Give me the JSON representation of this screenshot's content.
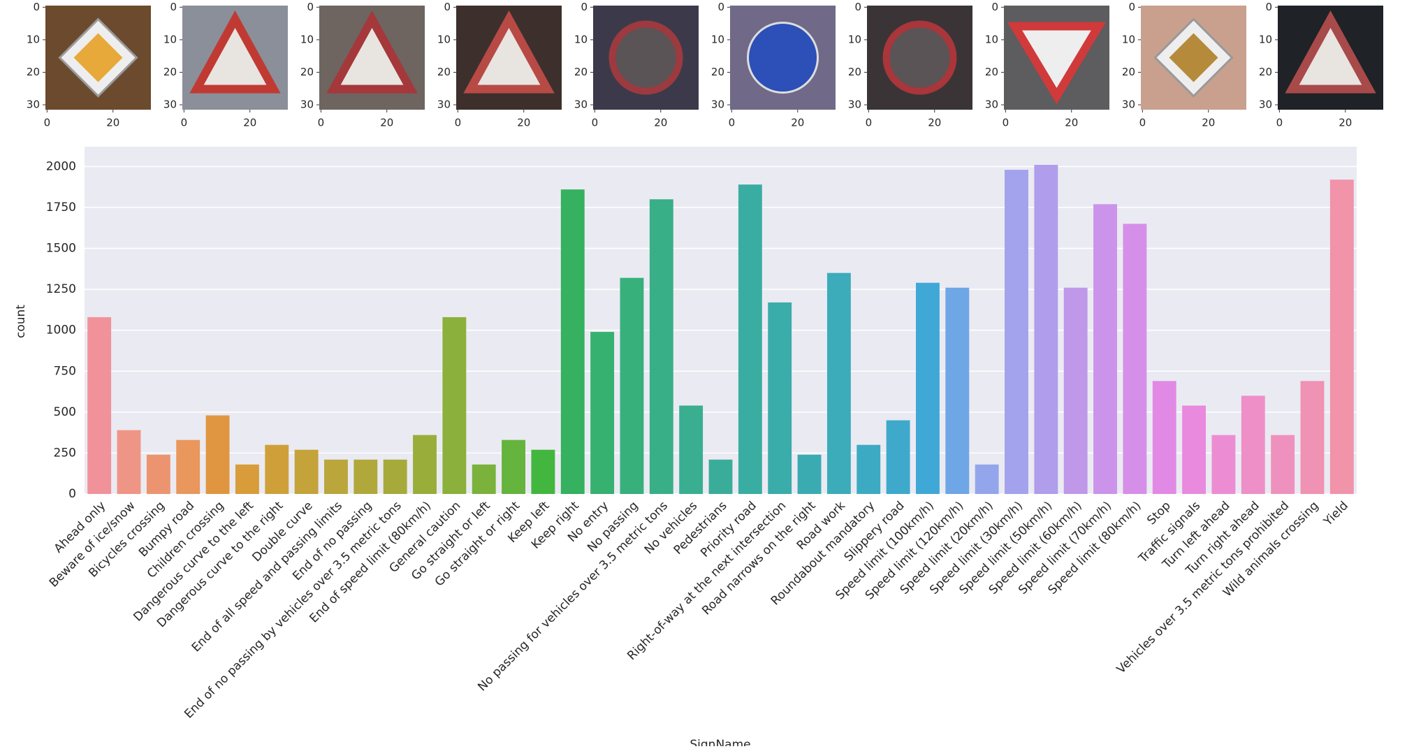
{
  "chart_data": [
    {
      "type": "image",
      "xlim": [
        -0.5,
        31.5
      ],
      "ylim": [
        31.5,
        -0.5
      ],
      "xticks": [
        0,
        20
      ],
      "yticks": [
        0,
        10,
        20,
        30
      ]
    },
    {
      "type": "image",
      "xlim": [
        -0.5,
        31.5
      ],
      "ylim": [
        31.5,
        -0.5
      ],
      "xticks": [
        0,
        20
      ],
      "yticks": [
        0,
        10,
        20,
        30
      ]
    },
    {
      "type": "image",
      "xlim": [
        -0.5,
        31.5
      ],
      "ylim": [
        31.5,
        -0.5
      ],
      "xticks": [
        0,
        20
      ],
      "yticks": [
        0,
        10,
        20,
        30
      ]
    },
    {
      "type": "image",
      "xlim": [
        -0.5,
        31.5
      ],
      "ylim": [
        31.5,
        -0.5
      ],
      "xticks": [
        0,
        20
      ],
      "yticks": [
        0,
        10,
        20,
        30
      ]
    },
    {
      "type": "image",
      "xlim": [
        -0.5,
        31.5
      ],
      "ylim": [
        31.5,
        -0.5
      ],
      "xticks": [
        0,
        20
      ],
      "yticks": [
        0,
        10,
        20,
        30
      ]
    },
    {
      "type": "image",
      "xlim": [
        -0.5,
        31.5
      ],
      "ylim": [
        31.5,
        -0.5
      ],
      "xticks": [
        0,
        20
      ],
      "yticks": [
        0,
        10,
        20,
        30
      ]
    },
    {
      "type": "image",
      "xlim": [
        -0.5,
        31.5
      ],
      "ylim": [
        31.5,
        -0.5
      ],
      "xticks": [
        0,
        20
      ],
      "yticks": [
        0,
        10,
        20,
        30
      ]
    },
    {
      "type": "image",
      "xlim": [
        -0.5,
        31.5
      ],
      "ylim": [
        31.5,
        -0.5
      ],
      "xticks": [
        0,
        20
      ],
      "yticks": [
        0,
        10,
        20,
        30
      ]
    },
    {
      "type": "image",
      "xlim": [
        -0.5,
        31.5
      ],
      "ylim": [
        31.5,
        -0.5
      ],
      "xticks": [
        0,
        20
      ],
      "yticks": [
        0,
        10,
        20,
        30
      ]
    },
    {
      "type": "image",
      "xlim": [
        -0.5,
        31.5
      ],
      "ylim": [
        31.5,
        -0.5
      ],
      "xticks": [
        0,
        20
      ],
      "yticks": [
        0,
        10,
        20,
        30
      ]
    },
    {
      "type": "bar",
      "xlabel": "SignName",
      "ylabel": "count",
      "categories": [
        "Ahead only",
        "Beware of ice/snow",
        "Bicycles crossing",
        "Bumpy road",
        "Children crossing",
        "Dangerous curve to the left",
        "Dangerous curve to the right",
        "Double curve",
        "End of all speed and passing limits",
        "End of no passing",
        "End of no passing by vehicles over 3.5 metric tons",
        "End of speed limit (80km/h)",
        "General caution",
        "Go straight or left",
        "Go straight or right",
        "Keep left",
        "Keep right",
        "No entry",
        "No passing",
        "No passing for vehicles over 3.5 metric tons",
        "No vehicles",
        "Pedestrians",
        "Priority road",
        "Right-of-way at the next intersection",
        "Road narrows on the right",
        "Road work",
        "Roundabout mandatory",
        "Slippery road",
        "Speed limit (100km/h)",
        "Speed limit (120km/h)",
        "Speed limit (20km/h)",
        "Speed limit (30km/h)",
        "Speed limit (50km/h)",
        "Speed limit (60km/h)",
        "Speed limit (70km/h)",
        "Speed limit (80km/h)",
        "Stop",
        "Traffic signals",
        "Turn left ahead",
        "Turn right ahead",
        "Vehicles over 3.5 metric tons prohibited",
        "Wild animals crossing",
        "Yield"
      ],
      "values": [
        1080,
        390,
        240,
        330,
        480,
        180,
        300,
        270,
        210,
        210,
        210,
        360,
        1080,
        180,
        330,
        270,
        1860,
        990,
        1320,
        1800,
        540,
        210,
        1890,
        1170,
        240,
        1350,
        300,
        450,
        1290,
        1260,
        180,
        1980,
        2010,
        1260,
        1770,
        1650,
        690,
        540,
        360,
        600,
        360,
        690,
        1920
      ],
      "colors": [
        "#f1929b",
        "#ef9585",
        "#ec9470",
        "#e9975d",
        "#e09640",
        "#d89c3a",
        "#cfa03a",
        "#c5a33b",
        "#bba63b",
        "#b1a83b",
        "#a6aa3b",
        "#99ad3b",
        "#8bb03b",
        "#7ab23b",
        "#64b43d",
        "#43b63f",
        "#35b15f",
        "#36b16f",
        "#37b07c",
        "#38af87",
        "#39ae91",
        "#39ad9a",
        "#3aada2",
        "#3aacaa",
        "#3babb2",
        "#3cabba",
        "#3daac3",
        "#3ea9cb",
        "#40a8d6",
        "#6ea6e6",
        "#93a6ec",
        "#a3a2ec",
        "#b09deb",
        "#bf98ea",
        "#cb93e9",
        "#d68fe8",
        "#e18ae5",
        "#e98ade",
        "#ec8dd3",
        "#ee8fc8",
        "#ef91be",
        "#f092b3",
        "#f193a9"
      ],
      "ylim": [
        0,
        2121
      ],
      "yticks": [
        0,
        250,
        500,
        750,
        1000,
        1250,
        1500,
        1750,
        2000
      ],
      "grid": true
    }
  ]
}
